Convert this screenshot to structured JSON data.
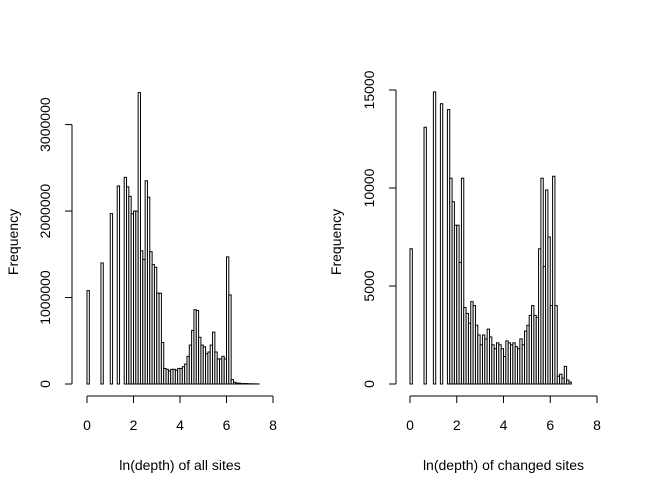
{
  "chart_data": [
    {
      "type": "bar",
      "title": "",
      "xlabel": "ln(depth) of all sites",
      "ylabel": "Frequency",
      "xlim": [
        0,
        8
      ],
      "ylim": [
        0,
        3400000
      ],
      "xticks": [
        "0",
        "2",
        "4",
        "6",
        "8"
      ],
      "yticks": [
        "0",
        "1000000",
        "2000000",
        "3000000"
      ],
      "x": [
        0.0,
        0.1,
        0.2,
        0.3,
        0.4,
        0.5,
        0.6,
        0.7,
        0.8,
        0.9,
        1.0,
        1.1,
        1.2,
        1.3,
        1.4,
        1.5,
        1.6,
        1.7,
        1.8,
        1.9,
        2.0,
        2.1,
        2.2,
        2.3,
        2.4,
        2.5,
        2.6,
        2.7,
        2.8,
        2.9,
        3.0,
        3.1,
        3.2,
        3.3,
        3.4,
        3.5,
        3.6,
        3.7,
        3.8,
        3.9,
        4.0,
        4.1,
        4.2,
        4.3,
        4.4,
        4.5,
        4.6,
        4.7,
        4.8,
        4.9,
        5.0,
        5.1,
        5.2,
        5.3,
        5.4,
        5.5,
        5.6,
        5.7,
        5.8,
        5.9,
        6.0,
        6.1,
        6.2,
        6.3,
        6.4,
        6.5,
        6.6,
        6.7,
        6.8,
        6.9,
        7.0,
        7.1,
        7.2,
        7.3,
        7.4,
        7.5,
        7.6,
        7.7,
        7.8,
        7.9
      ],
      "values": [
        1080000,
        0,
        0,
        0,
        0,
        0,
        1400000,
        0,
        0,
        0,
        1970000,
        0,
        0,
        2290000,
        0,
        0,
        2390000,
        2280000,
        2170000,
        1970000,
        2000000,
        2000000,
        3370000,
        1540000,
        1440000,
        2350000,
        2160000,
        1530000,
        1380000,
        1350000,
        1050000,
        1050000,
        480000,
        180000,
        170000,
        150000,
        170000,
        170000,
        160000,
        180000,
        180000,
        200000,
        230000,
        320000,
        450000,
        620000,
        860000,
        850000,
        540000,
        450000,
        430000,
        350000,
        370000,
        450000,
        600000,
        370000,
        290000,
        290000,
        320000,
        290000,
        1470000,
        1030000,
        50000,
        20000,
        10000,
        10000,
        5000,
        5000,
        5000,
        3000,
        2000,
        2000,
        1000,
        1000,
        0,
        0,
        0,
        0,
        0,
        0
      ]
    },
    {
      "type": "bar",
      "title": "",
      "xlabel": "ln(depth) of changed sites",
      "ylabel": "Frequency",
      "xlim": [
        0,
        8
      ],
      "ylim": [
        0,
        15000
      ],
      "xticks": [
        "0",
        "2",
        "4",
        "6",
        "8"
      ],
      "yticks": [
        "0",
        "5000",
        "10000",
        "15000"
      ],
      "x": [
        0.0,
        0.1,
        0.2,
        0.3,
        0.4,
        0.5,
        0.6,
        0.7,
        0.8,
        0.9,
        1.0,
        1.1,
        1.2,
        1.3,
        1.4,
        1.5,
        1.6,
        1.7,
        1.8,
        1.9,
        2.0,
        2.1,
        2.2,
        2.3,
        2.4,
        2.5,
        2.6,
        2.7,
        2.8,
        2.9,
        3.0,
        3.1,
        3.2,
        3.3,
        3.4,
        3.5,
        3.6,
        3.7,
        3.8,
        3.9,
        4.0,
        4.1,
        4.2,
        4.3,
        4.4,
        4.5,
        4.6,
        4.7,
        4.8,
        4.9,
        5.0,
        5.1,
        5.2,
        5.3,
        5.4,
        5.5,
        5.6,
        5.7,
        5.8,
        5.9,
        6.0,
        6.1,
        6.2,
        6.3,
        6.4,
        6.5,
        6.6,
        6.7,
        6.8,
        6.9,
        7.0,
        7.1,
        7.2,
        7.3,
        7.4,
        7.5,
        7.6,
        7.7,
        7.8,
        7.9
      ],
      "values": [
        6900,
        0,
        0,
        0,
        0,
        0,
        13100,
        0,
        0,
        0,
        14900,
        0,
        0,
        14300,
        0,
        0,
        14000,
        10500,
        9300,
        8100,
        8100,
        6200,
        10500,
        3900,
        3600,
        3100,
        4200,
        4000,
        3000,
        2500,
        2000,
        2500,
        2300,
        2800,
        2400,
        2000,
        1800,
        2100,
        2000,
        1800,
        1400,
        2200,
        2100,
        2000,
        2100,
        1900,
        1800,
        2300,
        2000,
        2700,
        3000,
        3500,
        4000,
        3500,
        3400,
        6900,
        10500,
        6000,
        9900,
        7500,
        4000,
        10600,
        4000,
        400,
        500,
        300,
        900,
        200,
        100,
        0,
        0,
        0,
        0,
        0,
        0,
        0,
        0,
        0,
        0,
        0
      ]
    }
  ]
}
